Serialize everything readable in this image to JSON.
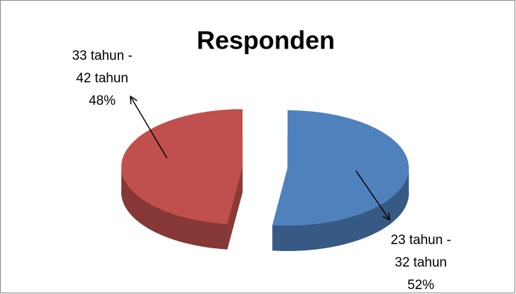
{
  "chart_data": {
    "type": "pie",
    "title": "Responden",
    "categories": [
      "23 tahun - 32 tahun",
      "33 tahun - 42 tahun"
    ],
    "values": [
      52,
      48
    ],
    "value_labels": [
      "52%",
      "48%"
    ],
    "colors": [
      "#4f81bd",
      "#c0504d"
    ]
  }
}
